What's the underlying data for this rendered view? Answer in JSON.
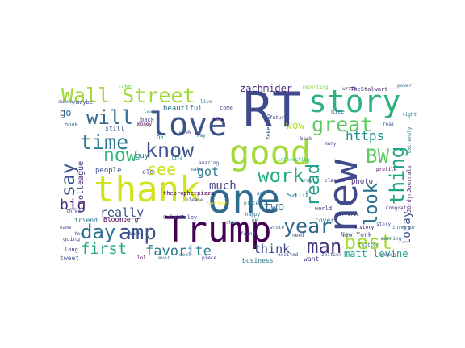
{
  "words": [
    {
      "text": "RT",
      "color": "#3e4a89"
    },
    {
      "text": "new",
      "color": "#3e4a89"
    },
    {
      "text": "one",
      "color": "#2f6b8e"
    },
    {
      "text": "Trump",
      "color": "#440154"
    },
    {
      "text": "thank",
      "color": "#d2e21b"
    },
    {
      "text": "good",
      "color": "#a2da37"
    },
    {
      "text": "love",
      "color": "#3b528b"
    },
    {
      "text": "story",
      "color": "#2db27d"
    },
    {
      "text": "Wall Street",
      "color": "#a0da39"
    },
    {
      "text": "know",
      "color": "#3b528b"
    },
    {
      "text": "time",
      "color": "#2a788e"
    },
    {
      "text": "great",
      "color": "#5ec962"
    },
    {
      "text": "will",
      "color": "#31688e"
    },
    {
      "text": "amp",
      "color": "#3b528b"
    },
    {
      "text": "day",
      "color": "#2c728e"
    },
    {
      "text": "year",
      "color": "#31688e"
    },
    {
      "text": "best",
      "color": "#a5db36"
    },
    {
      "text": "man",
      "color": "#46337e"
    },
    {
      "text": "work",
      "color": "#25ab82"
    },
    {
      "text": "now",
      "color": "#35b779"
    },
    {
      "text": "say",
      "color": "#3b528b"
    },
    {
      "text": "BW",
      "color": "#5ec962"
    },
    {
      "text": "thing",
      "color": "#20a486"
    },
    {
      "text": "read",
      "color": "#1fa088"
    },
    {
      "text": "look",
      "color": "#2d708e"
    },
    {
      "text": "see",
      "color": "#c8e020"
    },
    {
      "text": "first",
      "color": "#22a884"
    },
    {
      "text": "favorite",
      "color": "#2a788e"
    },
    {
      "text": "big",
      "color": "#482878"
    },
    {
      "text": "really",
      "color": "#3b528b"
    },
    {
      "text": "got",
      "color": "#2a788e"
    },
    {
      "text": "two",
      "color": "#31688e"
    },
    {
      "text": "think",
      "color": "#3e4a89"
    },
    {
      "text": "https",
      "color": "#21918c"
    },
    {
      "text": "wow",
      "color": "#b5de2b"
    },
    {
      "text": "today",
      "color": "#3b528b"
    },
    {
      "text": "much",
      "color": "#414487"
    },
    {
      "text": "matt_levine",
      "color": "#1f9e89"
    },
    {
      "text": "zachmider",
      "color": "#482878"
    },
    {
      "text": "beautiful",
      "color": "#2c728e"
    },
    {
      "text": "business",
      "color": "#2a788e"
    },
    {
      "text": "people",
      "color": "#3b528b"
    },
    {
      "text": "guy",
      "color": "#26828e"
    },
    {
      "text": "colleague",
      "color": "#482878"
    },
    {
      "text": "go",
      "color": "#31688e"
    },
    {
      "text": "Bloomberg",
      "color": "#440154"
    },
    {
      "text": "photo",
      "color": "#472d7b"
    },
    {
      "text": "New York",
      "color": "#3b528b"
    },
    {
      "text": "said",
      "color": "#2a788e"
    },
    {
      "text": "old",
      "color": "#3e4a89"
    },
    {
      "text": "friend",
      "color": "#2a788e"
    },
    {
      "text": "tweet",
      "color": "#3b528b"
    },
    {
      "text": "JordynJournals",
      "color": "#482878"
    },
    {
      "text": "CalebMelby",
      "color": "#3e4a89"
    },
    {
      "text": "theprophetpizza",
      "color": "#440154"
    },
    {
      "text": "ZekeFaux",
      "color": "#3b528b"
    },
    {
      "text": "TheStalwart",
      "color": "#472d7b"
    },
    {
      "text": "cover",
      "color": "#2a788e"
    },
    {
      "text": "want",
      "color": "#46337e"
    },
    {
      "text": "still",
      "color": "#3b528b"
    },
    {
      "text": "back",
      "color": "#414487"
    },
    {
      "text": "reporting",
      "color": "#8fd744"
    },
    {
      "text": "world",
      "color": "#482878"
    },
    {
      "text": "better",
      "color": "#fde725"
    },
    {
      "text": "make",
      "color": "#31688e"
    },
    {
      "text": "amazing",
      "color": "#3b528b"
    },
    {
      "text": "extremely",
      "color": "#2c728e"
    },
    {
      "text": "money",
      "color": "#440154"
    },
    {
      "text": "book",
      "color": "#31688e"
    },
    {
      "text": "maybe",
      "color": "#3e4a89"
    },
    {
      "text": "subway",
      "color": "#3b528b"
    },
    {
      "text": "take",
      "color": "#7ad151"
    },
    {
      "text": "last",
      "color": "#31688e"
    },
    {
      "text": "live",
      "color": "#2a788e"
    },
    {
      "text": "come",
      "color": "#3e4a89"
    },
    {
      "text": "write",
      "color": "#46337e"
    },
    {
      "text": "power",
      "color": "#31688e"
    },
    {
      "text": "twitter",
      "color": "#2c728e"
    },
    {
      "text": "history",
      "color": "#440154"
    },
    {
      "text": "nice",
      "color": "#2a788e"
    },
    {
      "text": "going",
      "color": "#3b528b"
    },
    {
      "text": "long",
      "color": "#482878"
    },
    {
      "text": "three",
      "color": "#3e4a89"
    },
    {
      "text": "name",
      "color": "#414487"
    },
    {
      "text": "right",
      "color": "#2a788e"
    },
    {
      "text": "wrote",
      "color": "#31688e"
    },
    {
      "text": "found",
      "color": "#3b528b"
    },
    {
      "text": "show",
      "color": "#2c728e"
    },
    {
      "text": "terrific",
      "color": "#46337e"
    },
    {
      "text": "Congrats",
      "color": "#482878"
    },
    {
      "text": "please",
      "color": "#3b528b"
    },
    {
      "text": "place",
      "color": "#2a788e"
    },
    {
      "text": "week",
      "color": "#414487"
    },
    {
      "text": "happy",
      "color": "#31688e"
    },
    {
      "text": "Oh",
      "color": "#2a788e"
    },
    {
      "text": "many",
      "color": "#3e4a89"
    },
    {
      "text": "classic",
      "color": "#482878"
    },
    {
      "text": "real",
      "color": "#3b528b"
    },
    {
      "text": "morning",
      "color": "#31688e"
    },
    {
      "text": "OK",
      "color": "#2c728e"
    },
    {
      "text": "story",
      "color": "#3b528b"
    },
    {
      "text": "profile",
      "color": "#440154"
    },
    {
      "text": "true",
      "color": "#2a788e"
    },
    {
      "text": "bank",
      "color": "#414487"
    },
    {
      "text": "zeitser",
      "color": "#3e4a89"
    },
    {
      "text": "way",
      "color": "#2a788e"
    },
    {
      "text": "book",
      "color": "#472d7b"
    },
    {
      "text": "interesting",
      "color": "#35b779"
    },
    {
      "text": "Yes",
      "color": "#3b528b"
    },
    {
      "text": "deal",
      "color": "#31688e"
    },
    {
      "text": "hope",
      "color": "#440154"
    },
    {
      "text": "life",
      "color": "#2a788e"
    },
    {
      "text": "future",
      "color": "#414487"
    },
    {
      "text": "doesn",
      "color": "#3e4a89"
    },
    {
      "text": "piece",
      "color": "#482878"
    },
    {
      "text": "excited",
      "color": "#3b528b"
    },
    {
      "text": "investor",
      "color": "#2c728e"
    },
    {
      "text": "ever",
      "color": "#31688e"
    },
    {
      "text": "far",
      "color": "#3e4a89"
    },
    {
      "text": "ask",
      "color": "#2a788e"
    },
    {
      "text": "lol",
      "color": "#440154"
    },
    {
      "text": "need",
      "color": "#3b528b"
    }
  ]
}
